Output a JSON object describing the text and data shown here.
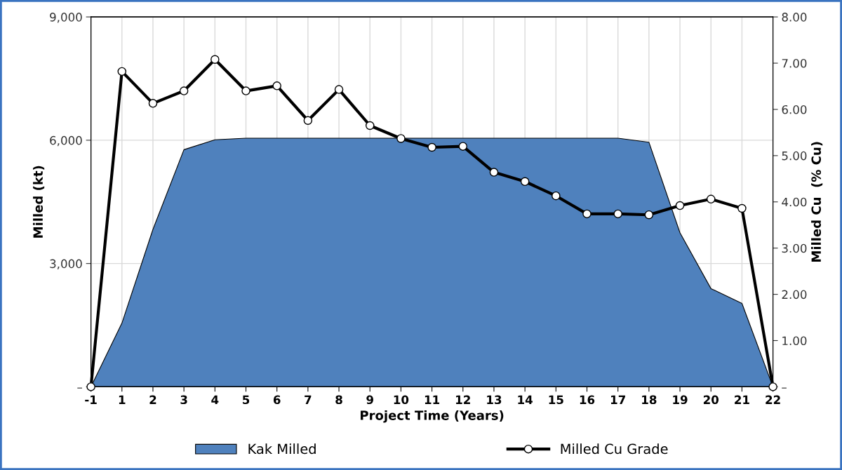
{
  "chart_data": {
    "type": "area",
    "xlabel": "Project Time (Years)",
    "ylabel": "Milled (kt)",
    "y2label": "Milled Cu  (% Cu)",
    "categories": [
      "-1",
      "1",
      "2",
      "3",
      "4",
      "5",
      "6",
      "7",
      "8",
      "9",
      "10",
      "11",
      "12",
      "13",
      "14",
      "15",
      "16",
      "17",
      "18",
      "19",
      "20",
      "21",
      "22"
    ],
    "series": [
      {
        "name": "Kak Milled",
        "color": "#4f81bd",
        "values": [
          0,
          1550,
          3830,
          5770,
          6010,
          6050,
          6050,
          6050,
          6050,
          6050,
          6050,
          6050,
          6050,
          6050,
          6050,
          6050,
          6050,
          6050,
          5950,
          3750,
          2390,
          2030,
          0
        ]
      },
      {
        "name": "Milled Cu Grade",
        "type": "line",
        "axis": "y2",
        "color": "#000000",
        "marker": "circle",
        "values": [
          0,
          6.82,
          6.13,
          6.4,
          7.08,
          6.4,
          6.51,
          5.76,
          6.43,
          5.65,
          5.37,
          5.18,
          5.2,
          4.64,
          4.44,
          4.13,
          3.74,
          3.74,
          3.72,
          3.92,
          4.06,
          3.86,
          0
        ]
      }
    ],
    "ylim": [
      0,
      9000
    ],
    "yticks": [
      {
        "value": 0,
        "label": "–"
      },
      {
        "value": 3000,
        "label": "3,000"
      },
      {
        "value": 6000,
        "label": "6,000"
      },
      {
        "value": 9000,
        "label": "9,000"
      }
    ],
    "y2lim": [
      0,
      8
    ],
    "y2ticks": [
      {
        "value": 0,
        "label": "–"
      },
      {
        "value": 1,
        "label": "1.00"
      },
      {
        "value": 2,
        "label": "2.00"
      },
      {
        "value": 3,
        "label": "3.00"
      },
      {
        "value": 4,
        "label": "4.00"
      },
      {
        "value": 5,
        "label": "5.00"
      },
      {
        "value": 6,
        "label": "6.00"
      },
      {
        "value": 7,
        "label": "7.00"
      },
      {
        "value": 8,
        "label": "8.00"
      }
    ],
    "grid": true,
    "legend": "bottom"
  }
}
